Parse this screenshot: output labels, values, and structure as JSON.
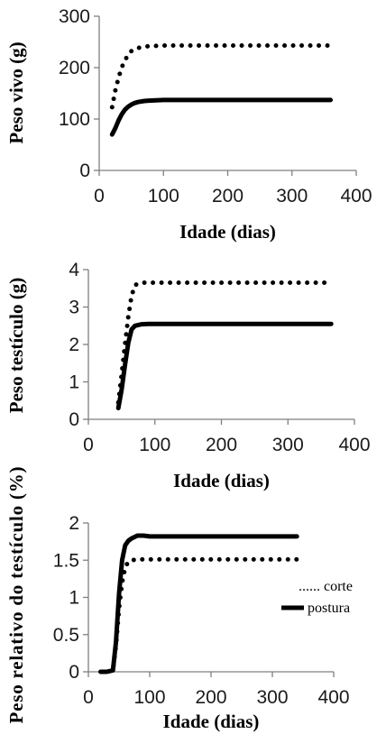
{
  "chart_data": [
    {
      "type": "line",
      "xlabel": "Idade (dias)",
      "ylabel": "Peso vivo (g)",
      "xlim": [
        0,
        400
      ],
      "ylim": [
        0,
        300
      ],
      "xticks": [
        "0",
        "100",
        "200",
        "300",
        "400"
      ],
      "yticks": [
        "0",
        "100",
        "200",
        "300"
      ],
      "grid": false,
      "series": [
        {
          "name": "corte",
          "style": "dotted",
          "color": "#000000",
          "x": [
            20,
            25,
            30,
            35,
            40,
            45,
            50,
            55,
            60,
            70,
            80,
            100,
            150,
            200,
            250,
            300,
            360
          ],
          "y": [
            123,
            155,
            180,
            200,
            214,
            225,
            232,
            236,
            238,
            241,
            242,
            243,
            243,
            243,
            243,
            243,
            243
          ]
        },
        {
          "name": "postura",
          "style": "solid",
          "color": "#000000",
          "x": [
            20,
            25,
            30,
            35,
            40,
            45,
            50,
            55,
            60,
            70,
            80,
            100,
            150,
            200,
            250,
            300,
            360
          ],
          "y": [
            70,
            82,
            97,
            109,
            118,
            124,
            128,
            131,
            133,
            135,
            136,
            137,
            137,
            137,
            137,
            137,
            137
          ]
        }
      ]
    },
    {
      "type": "line",
      "xlabel": "Idade (dias)",
      "ylabel": "Peso testículo (g)",
      "xlim": [
        0,
        400
      ],
      "ylim": [
        0,
        4
      ],
      "xticks": [
        "0",
        "100",
        "200",
        "300",
        "400"
      ],
      "yticks": [
        "0",
        "1",
        "2",
        "3",
        "4"
      ],
      "grid": false,
      "series": [
        {
          "name": "corte",
          "style": "dotted",
          "color": "#000000",
          "x": [
            45,
            50,
            55,
            60,
            65,
            70,
            75,
            80,
            100,
            150,
            200,
            250,
            300,
            365
          ],
          "y": [
            0.45,
            1.2,
            2.0,
            2.75,
            3.3,
            3.58,
            3.63,
            3.65,
            3.65,
            3.65,
            3.65,
            3.65,
            3.65,
            3.65
          ]
        },
        {
          "name": "postura",
          "style": "solid",
          "color": "#000000",
          "x": [
            45,
            50,
            55,
            60,
            65,
            70,
            75,
            80,
            90,
            100,
            150,
            200,
            250,
            300,
            365
          ],
          "y": [
            0.3,
            0.8,
            1.45,
            2.05,
            2.4,
            2.5,
            2.52,
            2.54,
            2.55,
            2.55,
            2.55,
            2.55,
            2.55,
            2.55,
            2.55
          ]
        }
      ]
    },
    {
      "type": "line",
      "xlabel": "Idade (dias)",
      "ylabel": "Peso relativo do testículo (%)",
      "xlim": [
        0,
        400
      ],
      "ylim": [
        0,
        2
      ],
      "xticks": [
        "0",
        "100",
        "200",
        "300",
        "400"
      ],
      "yticks": [
        "0",
        "0.5",
        "1",
        "1.5",
        "2"
      ],
      "grid": false,
      "legend": "right",
      "series": [
        {
          "name": "corte",
          "style": "dotted",
          "color": "#000000",
          "x": [
            20,
            30,
            40,
            45,
            50,
            55,
            60,
            65,
            70,
            80,
            100,
            150,
            200,
            250,
            300,
            340
          ],
          "y": [
            0,
            0,
            0.02,
            0.35,
            0.85,
            1.2,
            1.4,
            1.48,
            1.5,
            1.51,
            1.51,
            1.51,
            1.51,
            1.51,
            1.51,
            1.51
          ]
        },
        {
          "name": "postura",
          "style": "solid",
          "color": "#000000",
          "x": [
            20,
            30,
            40,
            45,
            50,
            55,
            60,
            65,
            70,
            80,
            90,
            100,
            150,
            200,
            250,
            300,
            340
          ],
          "y": [
            0,
            0,
            0.02,
            0.4,
            1.05,
            1.5,
            1.7,
            1.76,
            1.79,
            1.83,
            1.83,
            1.82,
            1.82,
            1.82,
            1.82,
            1.82,
            1.82
          ]
        }
      ]
    }
  ],
  "legend": {
    "corte_label": "...... corte",
    "postura_label": "postura"
  }
}
